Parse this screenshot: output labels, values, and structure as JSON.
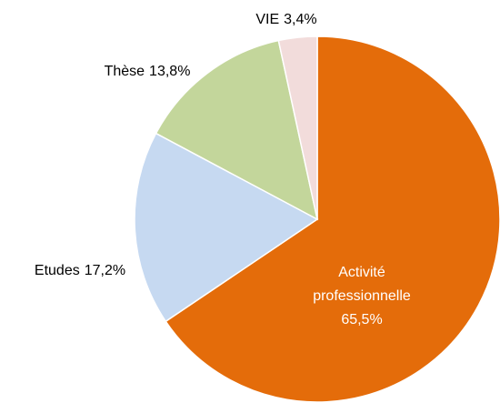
{
  "chart_data": {
    "type": "pie",
    "categories": [
      "Activité professionnelle",
      "Etudes",
      "Thèse",
      "VIE"
    ],
    "values": [
      65.5,
      17.2,
      13.8,
      3.4
    ],
    "value_labels": [
      "65,5%",
      "17,2%",
      "13,8%",
      "3,4%"
    ],
    "colors": [
      "#e46c0a",
      "#c6d9f1",
      "#c3d69b",
      "#f2dcdb"
    ]
  }
}
